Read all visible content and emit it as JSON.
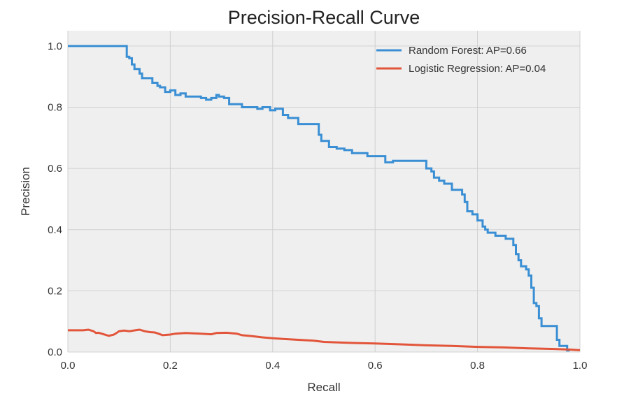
{
  "chart_data": {
    "type": "line",
    "title": "Precision-Recall Curve",
    "xlabel": "Recall",
    "ylabel": "Precision",
    "xlim": [
      0.0,
      1.0
    ],
    "ylim": [
      0.0,
      1.05
    ],
    "x_ticks": [
      0.0,
      0.2,
      0.4,
      0.6,
      0.8,
      1.0
    ],
    "x_tick_labels": [
      "0.0",
      "0.2",
      "0.4",
      "0.6",
      "0.8",
      "1.0"
    ],
    "y_ticks": [
      0.0,
      0.2,
      0.4,
      0.6,
      0.8,
      1.0
    ],
    "y_tick_labels": [
      "0.0",
      "0.2",
      "0.4",
      "0.6",
      "0.8",
      "1.0"
    ],
    "grid": true,
    "legend_position": "top-right",
    "background_color": "#efefef",
    "series": [
      {
        "name": "Random Forest: AP=0.66",
        "color": "#3a8fd4",
        "step": true,
        "x": [
          0.0,
          0.115,
          0.115,
          0.12,
          0.125,
          0.13,
          0.14,
          0.145,
          0.155,
          0.165,
          0.175,
          0.18,
          0.19,
          0.2,
          0.21,
          0.22,
          0.23,
          0.245,
          0.26,
          0.27,
          0.28,
          0.29,
          0.295,
          0.305,
          0.315,
          0.33,
          0.34,
          0.36,
          0.37,
          0.38,
          0.395,
          0.405,
          0.42,
          0.43,
          0.44,
          0.45,
          0.455,
          0.475,
          0.49,
          0.495,
          0.505,
          0.51,
          0.525,
          0.54,
          0.555,
          0.565,
          0.585,
          0.605,
          0.62,
          0.635,
          0.69,
          0.7,
          0.71,
          0.715,
          0.725,
          0.735,
          0.75,
          0.77,
          0.775,
          0.78,
          0.79,
          0.8,
          0.81,
          0.815,
          0.82,
          0.83,
          0.835,
          0.855,
          0.87,
          0.875,
          0.88,
          0.885,
          0.895,
          0.9,
          0.905,
          0.91,
          0.915,
          0.92,
          0.925,
          0.93,
          0.955,
          0.96,
          0.97,
          0.975,
          0.98
        ],
        "y": [
          1.0,
          1.0,
          0.965,
          0.96,
          0.94,
          0.925,
          0.91,
          0.895,
          0.895,
          0.88,
          0.87,
          0.865,
          0.85,
          0.855,
          0.84,
          0.845,
          0.835,
          0.835,
          0.83,
          0.825,
          0.83,
          0.84,
          0.835,
          0.83,
          0.81,
          0.81,
          0.8,
          0.8,
          0.795,
          0.8,
          0.79,
          0.795,
          0.775,
          0.765,
          0.765,
          0.745,
          0.745,
          0.745,
          0.71,
          0.69,
          0.69,
          0.67,
          0.665,
          0.66,
          0.65,
          0.65,
          0.64,
          0.64,
          0.62,
          0.625,
          0.625,
          0.6,
          0.59,
          0.57,
          0.56,
          0.55,
          0.53,
          0.515,
          0.49,
          0.46,
          0.45,
          0.43,
          0.41,
          0.4,
          0.39,
          0.39,
          0.38,
          0.37,
          0.35,
          0.32,
          0.3,
          0.28,
          0.27,
          0.25,
          0.21,
          0.16,
          0.15,
          0.11,
          0.085,
          0.085,
          0.04,
          0.02,
          0.02,
          0.005,
          0.005
        ]
      },
      {
        "name": "Logistic Regression: AP=0.04",
        "color": "#e2553a",
        "step": false,
        "x": [
          0.0,
          0.03,
          0.04,
          0.05,
          0.055,
          0.06,
          0.07,
          0.08,
          0.09,
          0.095,
          0.1,
          0.11,
          0.12,
          0.135,
          0.14,
          0.15,
          0.16,
          0.17,
          0.18,
          0.185,
          0.2,
          0.21,
          0.23,
          0.26,
          0.28,
          0.29,
          0.31,
          0.33,
          0.34,
          0.36,
          0.38,
          0.4,
          0.42,
          0.45,
          0.48,
          0.5,
          0.55,
          0.6,
          0.65,
          0.7,
          0.75,
          0.8,
          0.85,
          0.9,
          0.95,
          0.98,
          1.0
        ],
        "y": [
          0.071,
          0.071,
          0.073,
          0.068,
          0.062,
          0.063,
          0.058,
          0.053,
          0.057,
          0.062,
          0.068,
          0.07,
          0.068,
          0.072,
          0.073,
          0.068,
          0.065,
          0.064,
          0.058,
          0.055,
          0.057,
          0.06,
          0.062,
          0.06,
          0.058,
          0.062,
          0.063,
          0.06,
          0.055,
          0.052,
          0.048,
          0.045,
          0.043,
          0.04,
          0.037,
          0.033,
          0.03,
          0.028,
          0.025,
          0.022,
          0.02,
          0.017,
          0.015,
          0.012,
          0.01,
          0.008,
          0.006
        ]
      }
    ]
  }
}
